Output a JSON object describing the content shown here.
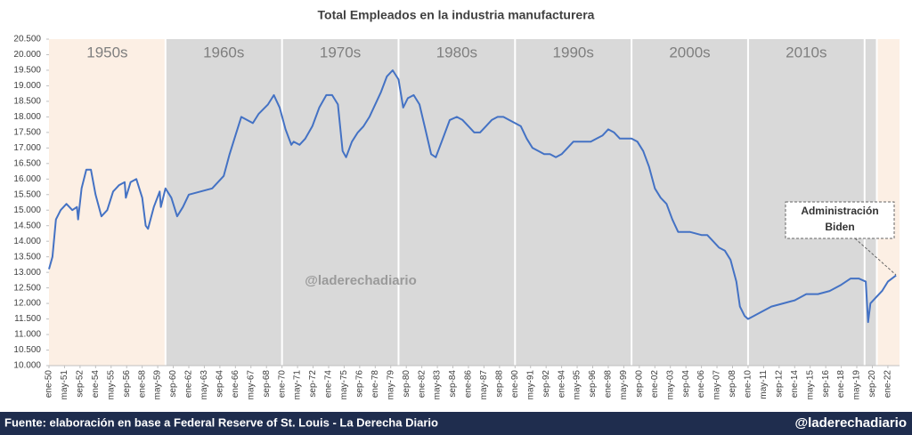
{
  "chart_data": {
    "type": "line",
    "title": "Total Empleados en la industria manufacturera",
    "watermark": "@laderechadiario",
    "annotation": {
      "lines": [
        "Administración",
        "Biden"
      ]
    },
    "periods": [
      {
        "label": "1950s",
        "start": 1950,
        "end": 1960,
        "color": "#fcefe4"
      },
      {
        "label": "1960s",
        "start": 1960,
        "end": 1970,
        "color": "#d9d9d9"
      },
      {
        "label": "1970s",
        "start": 1970,
        "end": 1980,
        "color": "#d9d9d9"
      },
      {
        "label": "1980s",
        "start": 1980,
        "end": 1990,
        "color": "#d9d9d9"
      },
      {
        "label": "1990s",
        "start": 1990,
        "end": 2000,
        "color": "#d9d9d9"
      },
      {
        "label": "2000s",
        "start": 2000,
        "end": 2010,
        "color": "#d9d9d9"
      },
      {
        "label": "2010s",
        "start": 2010,
        "end": 2020,
        "color": "#d9d9d9"
      },
      {
        "start": 2020,
        "end": 2021.05,
        "color": "#d9d9d9"
      },
      {
        "start": 2021.05,
        "end": 2023,
        "color": "#fcefe4"
      }
    ],
    "xlim": [
      1950,
      2023
    ],
    "ylim": [
      10000,
      20500
    ],
    "yticks": [
      {
        "value": 10000,
        "label": "10.000"
      },
      {
        "value": 10500,
        "label": "10.500"
      },
      {
        "value": 11000,
        "label": "11.000"
      },
      {
        "value": 11500,
        "label": "11.500"
      },
      {
        "value": 12000,
        "label": "12.000"
      },
      {
        "value": 12500,
        "label": "12.500"
      },
      {
        "value": 13000,
        "label": "13.000"
      },
      {
        "value": 13500,
        "label": "13.500"
      },
      {
        "value": 14000,
        "label": "14.000"
      },
      {
        "value": 14500,
        "label": "14.500"
      },
      {
        "value": 15000,
        "label": "15.000"
      },
      {
        "value": 15500,
        "label": "15.500"
      },
      {
        "value": 16000,
        "label": "16.000"
      },
      {
        "value": 16500,
        "label": "16.500"
      },
      {
        "value": 17000,
        "label": "17.000"
      },
      {
        "value": 17500,
        "label": "17.500"
      },
      {
        "value": 18000,
        "label": "18.000"
      },
      {
        "value": 18500,
        "label": "18.500"
      },
      {
        "value": 19000,
        "label": "19.000"
      },
      {
        "value": 19500,
        "label": "19.500"
      },
      {
        "value": 20000,
        "label": "20.000"
      },
      {
        "value": 20500,
        "label": "20.500"
      }
    ],
    "xticks": [
      {
        "value": 1950,
        "label": "ene-50"
      },
      {
        "value": 1951.333,
        "label": "may-51"
      },
      {
        "value": 1952.667,
        "label": "sep-52"
      },
      {
        "value": 1954,
        "label": "ene-54"
      },
      {
        "value": 1955.333,
        "label": "may-55"
      },
      {
        "value": 1956.667,
        "label": "sep-56"
      },
      {
        "value": 1958,
        "label": "ene-58"
      },
      {
        "value": 1959.333,
        "label": "may-59"
      },
      {
        "value": 1960.667,
        "label": "sep-60"
      },
      {
        "value": 1962,
        "label": "ene-62"
      },
      {
        "value": 1963.333,
        "label": "may-63"
      },
      {
        "value": 1964.667,
        "label": "sep-64"
      },
      {
        "value": 1966,
        "label": "ene-66"
      },
      {
        "value": 1967.333,
        "label": "may-67"
      },
      {
        "value": 1968.667,
        "label": "sep-68"
      },
      {
        "value": 1970,
        "label": "ene-70"
      },
      {
        "value": 1971.333,
        "label": "may-71"
      },
      {
        "value": 1972.667,
        "label": "sep-72"
      },
      {
        "value": 1974,
        "label": "ene-74"
      },
      {
        "value": 1975.333,
        "label": "may-75"
      },
      {
        "value": 1976.667,
        "label": "sep-76"
      },
      {
        "value": 1978,
        "label": "ene-78"
      },
      {
        "value": 1979.333,
        "label": "may-79"
      },
      {
        "value": 1980.667,
        "label": "sep-80"
      },
      {
        "value": 1982,
        "label": "ene-82"
      },
      {
        "value": 1983.333,
        "label": "may-83"
      },
      {
        "value": 1984.667,
        "label": "sep-84"
      },
      {
        "value": 1986,
        "label": "ene-86"
      },
      {
        "value": 1987.333,
        "label": "may-87"
      },
      {
        "value": 1988.667,
        "label": "sep-88"
      },
      {
        "value": 1990,
        "label": "ene-90"
      },
      {
        "value": 1991.333,
        "label": "may-91"
      },
      {
        "value": 1992.667,
        "label": "sep-92"
      },
      {
        "value": 1994,
        "label": "ene-94"
      },
      {
        "value": 1995.333,
        "label": "may-95"
      },
      {
        "value": 1996.667,
        "label": "sep-96"
      },
      {
        "value": 1998,
        "label": "ene-98"
      },
      {
        "value": 1999.333,
        "label": "may-99"
      },
      {
        "value": 2000.667,
        "label": "sep-00"
      },
      {
        "value": 2002,
        "label": "ene-02"
      },
      {
        "value": 2003.333,
        "label": "may-03"
      },
      {
        "value": 2004.667,
        "label": "sep-04"
      },
      {
        "value": 2006,
        "label": "ene-06"
      },
      {
        "value": 2007.333,
        "label": "may-07"
      },
      {
        "value": 2008.667,
        "label": "sep-08"
      },
      {
        "value": 2010,
        "label": "ene-10"
      },
      {
        "value": 2011.333,
        "label": "may-11"
      },
      {
        "value": 2012.667,
        "label": "sep-12"
      },
      {
        "value": 2014,
        "label": "ene-14"
      },
      {
        "value": 2015.333,
        "label": "may-15"
      },
      {
        "value": 2016.667,
        "label": "sep-16"
      },
      {
        "value": 2018,
        "label": "ene-18"
      },
      {
        "value": 2019.333,
        "label": "may-19"
      },
      {
        "value": 2020.667,
        "label": "sep-20"
      },
      {
        "value": 2022,
        "label": "ene-22"
      }
    ],
    "series": [
      {
        "color": "#4472c4",
        "x": [
          1950,
          1950.3,
          1950.6,
          1951,
          1951.5,
          1952,
          1952.4,
          1952.5,
          1952.8,
          1953.2,
          1953.6,
          1954,
          1954.5,
          1955,
          1955.5,
          1956,
          1956.5,
          1956.6,
          1957,
          1957.5,
          1958,
          1958.3,
          1958.5,
          1959,
          1959.5,
          1959.6,
          1960,
          1960.5,
          1961,
          1961.5,
          1962,
          1963,
          1964,
          1965,
          1965.5,
          1966,
          1966.5,
          1967,
          1967.5,
          1968,
          1968.8,
          1969.3,
          1969.8,
          1970.3,
          1970.8,
          1971,
          1971.5,
          1972,
          1972.6,
          1973.2,
          1973.8,
          1974.3,
          1974.8,
          1975.2,
          1975.5,
          1976,
          1976.5,
          1977,
          1977.5,
          1978,
          1978.5,
          1979,
          1979.5,
          1980,
          1980.4,
          1980.8,
          1981.3,
          1981.8,
          1982.3,
          1982.8,
          1983.2,
          1983.8,
          1984.4,
          1985,
          1985.5,
          1986,
          1986.5,
          1987,
          1987.5,
          1988,
          1988.5,
          1989,
          1989.5,
          1990,
          1990.5,
          1991,
          1991.5,
          1992,
          1992.5,
          1993,
          1993.5,
          1994,
          1994.5,
          1995,
          1995.5,
          1996,
          1996.5,
          1997,
          1997.5,
          1998,
          1998.5,
          1999,
          1999.5,
          2000,
          2000.5,
          2001,
          2001.5,
          2002,
          2002.5,
          2003,
          2003.5,
          2004,
          2004.5,
          2005,
          2006,
          2006.5,
          2007,
          2007.5,
          2008,
          2008.5,
          2009,
          2009.3,
          2009.7,
          2010,
          2010.5,
          2011,
          2012,
          2013,
          2014,
          2015,
          2016,
          2017,
          2018,
          2018.8,
          2019.5,
          2020.1,
          2020.3,
          2020.5,
          2021,
          2021.5,
          2022,
          2022.7
        ],
        "values": [
          13100,
          13500,
          14700,
          15000,
          15200,
          15000,
          15100,
          14700,
          15700,
          16300,
          16300,
          15500,
          14800,
          15000,
          15600,
          15800,
          15900,
          15400,
          15900,
          16000,
          15400,
          14500,
          14400,
          15100,
          15600,
          15100,
          15700,
          15400,
          14800,
          15100,
          15500,
          15600,
          15700,
          16100,
          16800,
          17400,
          18000,
          17900,
          17800,
          18100,
          18400,
          18700,
          18300,
          17600,
          17100,
          17200,
          17100,
          17300,
          17700,
          18300,
          18700,
          18700,
          18400,
          16900,
          16700,
          17200,
          17500,
          17700,
          18000,
          18400,
          18800,
          19300,
          19500,
          19200,
          18300,
          18600,
          18700,
          18400,
          17600,
          16800,
          16700,
          17300,
          17900,
          18000,
          17900,
          17700,
          17500,
          17500,
          17700,
          17900,
          18000,
          18000,
          17900,
          17800,
          17700,
          17300,
          17000,
          16900,
          16800,
          16800,
          16700,
          16800,
          17000,
          17200,
          17200,
          17200,
          17200,
          17300,
          17400,
          17600,
          17500,
          17300,
          17300,
          17300,
          17200,
          16900,
          16400,
          15700,
          15400,
          15200,
          14700,
          14300,
          14300,
          14300,
          14200,
          14200,
          14000,
          13800,
          13700,
          13400,
          12700,
          11900,
          11600,
          11500,
          11600,
          11700,
          11900,
          12000,
          12100,
          12300,
          12300,
          12400,
          12600,
          12800,
          12800,
          12700,
          11400,
          12000,
          12200,
          12400,
          12700,
          12900
        ]
      }
    ]
  },
  "footer": {
    "source": "Fuente: elaboración en base a Federal Reserve of St. Louis - La Derecha Diario",
    "handle": "@laderechadiario"
  }
}
